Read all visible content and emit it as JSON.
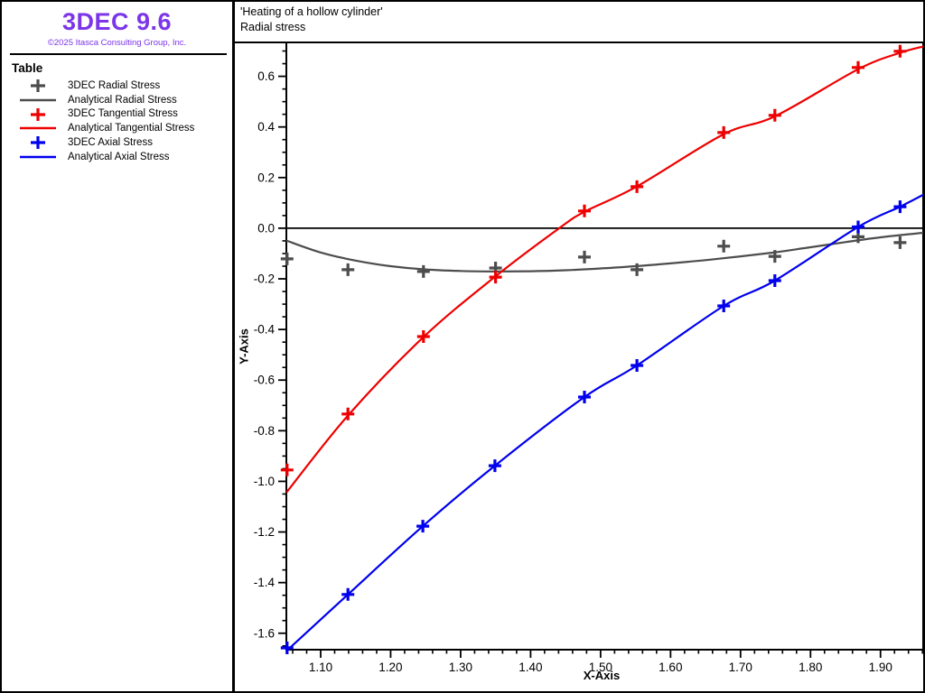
{
  "app": {
    "logo": "3DEC 9.6",
    "copyright": "©2025 Itasca Consulting Group, Inc.",
    "brand_color": "#7c35e8"
  },
  "legend": {
    "title": "Table",
    "items": [
      {
        "label": "3DEC Radial Stress",
        "marker": "plus",
        "color": "#4d4d4d"
      },
      {
        "label": "Analytical Radial Stress",
        "marker": "line",
        "color": "#4d4d4d"
      },
      {
        "label": "3DEC Tangential Stress",
        "marker": "plus",
        "color": "#ee0000"
      },
      {
        "label": "Analytical Tangential Stress",
        "marker": "line",
        "color": "#ee0000"
      },
      {
        "label": "3DEC Axial Stress",
        "marker": "plus",
        "color": "#0000ee"
      },
      {
        "label": "Analytical Axial Stress",
        "marker": "line",
        "color": "#0000ee"
      }
    ]
  },
  "chart_data": {
    "type": "line",
    "title": "'Heating of a hollow cylinder'",
    "subtitle": "Radial stress",
    "xlabel": "X-Axis",
    "ylabel": "Y-Axis",
    "x_range": [
      1.051,
      1.961
    ],
    "y_range": [
      -1.665,
      0.734
    ],
    "x_major_ticks": [
      1.1,
      1.2,
      1.3,
      1.4,
      1.5,
      1.6,
      1.7,
      1.8,
      1.9
    ],
    "x_minor_step": 0.02,
    "y_major_ticks": [
      0.6,
      0.4,
      0.2,
      0.0,
      -0.2,
      -0.4,
      -0.6,
      -0.8,
      -1.0,
      -1.2,
      -1.4,
      -1.6
    ],
    "y_minor_step": 0.05,
    "grid": false,
    "zero_line": true,
    "legend_position": "left-panel",
    "series": [
      {
        "name": "3DEC Radial Stress",
        "type": "markers",
        "color": "#4d4d4d",
        "x": [
          1.052,
          1.139,
          1.247,
          1.35,
          1.477,
          1.552,
          1.676,
          1.749,
          1.868,
          1.928
        ],
        "y": [
          -0.121,
          -0.164,
          -0.171,
          -0.157,
          -0.114,
          -0.164,
          -0.071,
          -0.111,
          -0.034,
          -0.057
        ]
      },
      {
        "name": "Analytical Radial Stress",
        "type": "line",
        "color": "#4d4d4d",
        "x": [
          1.052,
          1.1,
          1.15,
          1.2,
          1.25,
          1.3,
          1.35,
          1.4,
          1.45,
          1.5,
          1.55,
          1.6,
          1.65,
          1.7,
          1.75,
          1.8,
          1.85,
          1.9,
          1.961
        ],
        "y": [
          -0.05,
          -0.096,
          -0.128,
          -0.15,
          -0.163,
          -0.169,
          -0.171,
          -0.17,
          -0.166,
          -0.159,
          -0.15,
          -0.139,
          -0.126,
          -0.111,
          -0.095,
          -0.075,
          -0.055,
          -0.036,
          -0.018
        ]
      },
      {
        "name": "3DEC Tangential Stress",
        "type": "markers",
        "color": "#ee0000",
        "x": [
          1.052,
          1.139,
          1.247,
          1.35,
          1.477,
          1.552,
          1.676,
          1.749,
          1.868,
          1.928
        ],
        "y": [
          -0.955,
          -0.734,
          -0.428,
          -0.193,
          0.068,
          0.164,
          0.378,
          0.446,
          0.635,
          0.699
        ]
      },
      {
        "name": "Analytical Tangential Stress",
        "type": "line",
        "color": "#ee0000",
        "x": [
          1.052,
          1.139,
          1.247,
          1.35,
          1.441,
          1.477,
          1.552,
          1.675,
          1.75,
          1.868,
          1.928,
          1.961
        ],
        "y": [
          -1.041,
          -0.74,
          -0.43,
          -0.19,
          0.0,
          0.065,
          0.165,
          0.37,
          0.443,
          0.628,
          0.693,
          0.718
        ]
      },
      {
        "name": "3DEC Axial Stress",
        "type": "markers",
        "color": "#0000ee",
        "x": [
          1.052,
          1.139,
          1.246,
          1.349,
          1.477,
          1.552,
          1.676,
          1.749,
          1.868,
          1.928
        ],
        "y": [
          -1.658,
          -1.447,
          -1.177,
          -0.938,
          -0.667,
          -0.542,
          -0.307,
          -0.207,
          0.005,
          0.085
        ]
      },
      {
        "name": "Analytical Axial Stress",
        "type": "line",
        "color": "#0000ee",
        "x": [
          1.052,
          1.139,
          1.246,
          1.349,
          1.477,
          1.552,
          1.676,
          1.749,
          1.868,
          1.928,
          1.961
        ],
        "y": [
          -1.668,
          -1.447,
          -1.177,
          -0.938,
          -0.667,
          -0.542,
          -0.307,
          -0.207,
          0.005,
          0.085,
          0.132
        ]
      }
    ]
  }
}
